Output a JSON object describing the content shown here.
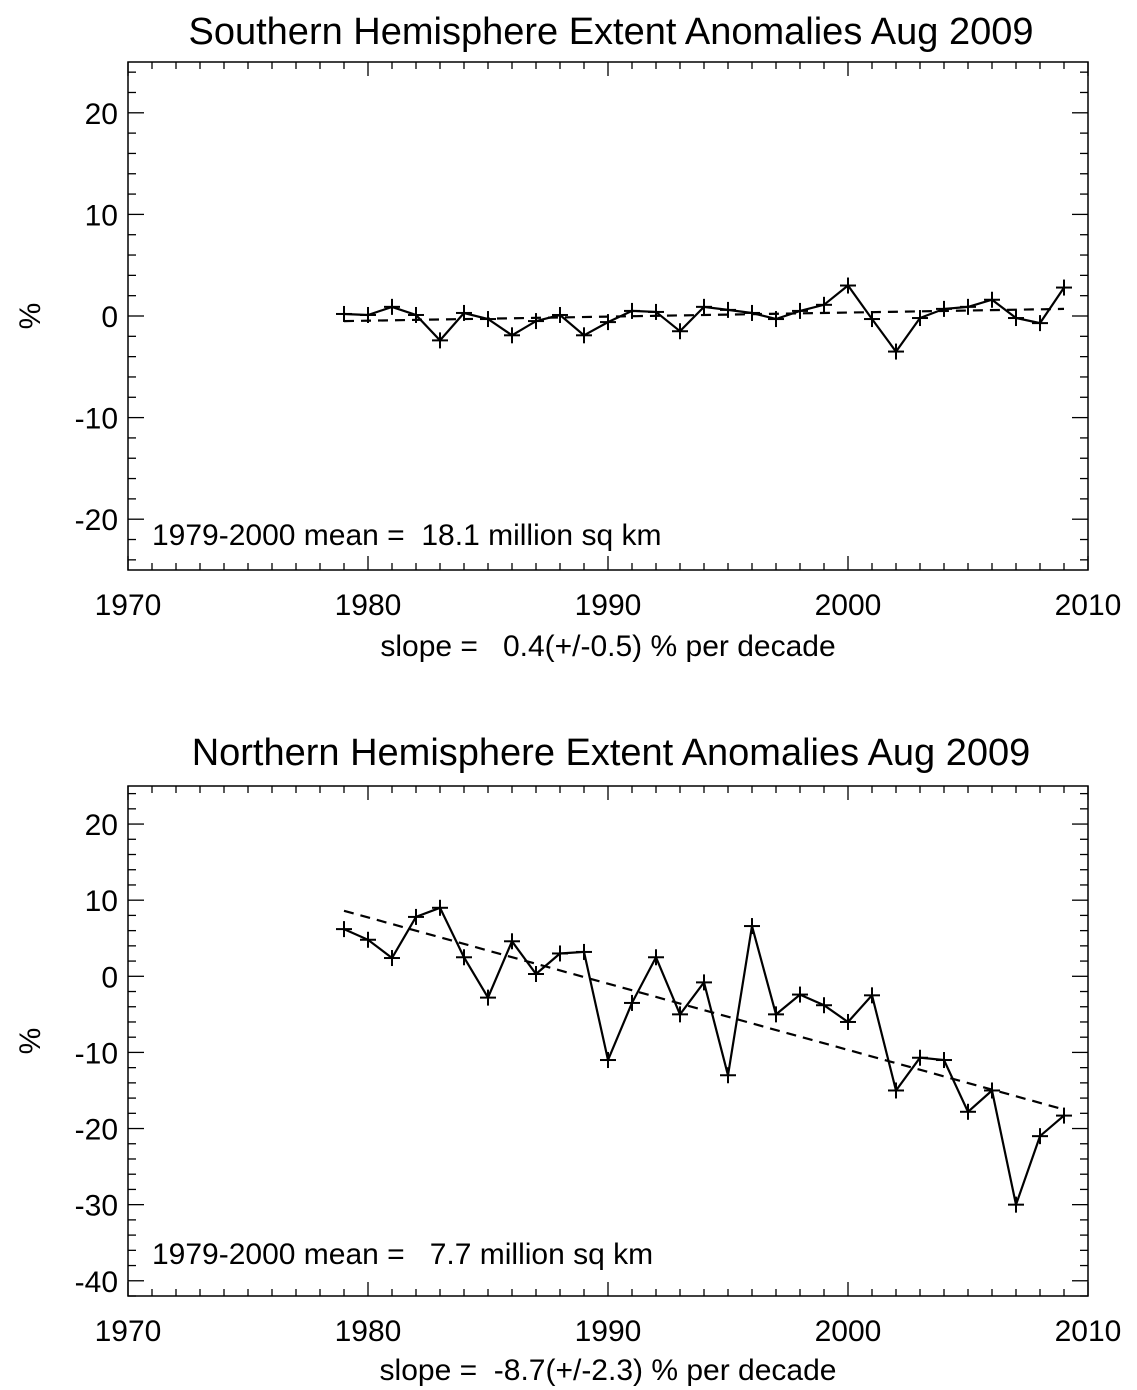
{
  "chart_data": [
    {
      "type": "line",
      "title": "Southern Hemisphere Extent Anomalies Aug 2009",
      "ylabel": "%",
      "xlabel": "",
      "xlim": [
        1970,
        2010
      ],
      "ylim": [
        -25,
        25
      ],
      "xticks": [
        1970,
        1980,
        1990,
        2000,
        2010
      ],
      "yticks": [
        20,
        10,
        0,
        -10,
        -20
      ],
      "x_minor_step": 1,
      "y_minor_step": 2,
      "mean_text": "1979-2000 mean =  18.1 million sq km",
      "slope_text": "slope =   0.4(+/-0.5) % per decade",
      "series": [
        {
          "style": "solid-with-plus-markers",
          "x": [
            1979,
            1980,
            1981,
            1982,
            1983,
            1984,
            1985,
            1986,
            1987,
            1988,
            1989,
            1990,
            1991,
            1992,
            1993,
            1994,
            1995,
            1996,
            1997,
            1998,
            1999,
            2000,
            2001,
            2002,
            2003,
            2004,
            2005,
            2006,
            2007,
            2008,
            2009
          ],
          "values": [
            0.2,
            0.1,
            0.9,
            0.1,
            -2.4,
            0.3,
            -0.3,
            -1.9,
            -0.5,
            0.1,
            -1.9,
            -0.6,
            0.5,
            0.4,
            -1.5,
            0.9,
            0.6,
            0.3,
            -0.3,
            0.5,
            1.1,
            3.0,
            -0.3,
            -3.5,
            -0.2,
            0.7,
            0.9,
            1.6,
            -0.2,
            -0.7,
            2.8
          ]
        },
        {
          "style": "dashed-trend",
          "x": [
            1979,
            2009
          ],
          "values": [
            -0.5,
            0.7
          ]
        }
      ]
    },
    {
      "type": "line",
      "title": "Northern Hemisphere Extent Anomalies Aug 2009",
      "ylabel": "%",
      "xlabel": "",
      "xlim": [
        1970,
        2010
      ],
      "ylim": [
        -42,
        25
      ],
      "xticks": [
        1970,
        1980,
        1990,
        2000,
        2010
      ],
      "yticks": [
        20,
        10,
        0,
        -10,
        -20,
        -30,
        -40
      ],
      "x_minor_step": 1,
      "y_minor_step": 2,
      "mean_text": "1979-2000 mean =   7.7 million sq km",
      "slope_text": "slope =  -8.7(+/-2.3) % per decade",
      "series": [
        {
          "style": "solid-with-plus-markers",
          "x": [
            1979,
            1980,
            1981,
            1982,
            1983,
            1984,
            1985,
            1986,
            1987,
            1988,
            1989,
            1990,
            1991,
            1992,
            1993,
            1994,
            1995,
            1996,
            1997,
            1998,
            1999,
            2000,
            2001,
            2002,
            2003,
            2004,
            2005,
            2006,
            2007,
            2008,
            2009
          ],
          "values": [
            6.2,
            4.8,
            2.4,
            7.8,
            9.0,
            2.5,
            -2.8,
            4.6,
            0.3,
            3.0,
            3.2,
            -11.0,
            -3.5,
            2.5,
            -5.0,
            -0.8,
            -13.0,
            6.6,
            -5.0,
            -2.4,
            -3.8,
            -6.0,
            -2.5,
            -15.0,
            -10.7,
            -11.0,
            -17.8,
            -15.0,
            -30.0,
            -21.0,
            -18.3
          ]
        },
        {
          "style": "dashed-trend",
          "x": [
            1979,
            2009
          ],
          "values": [
            8.6,
            -17.5
          ]
        }
      ]
    }
  ]
}
